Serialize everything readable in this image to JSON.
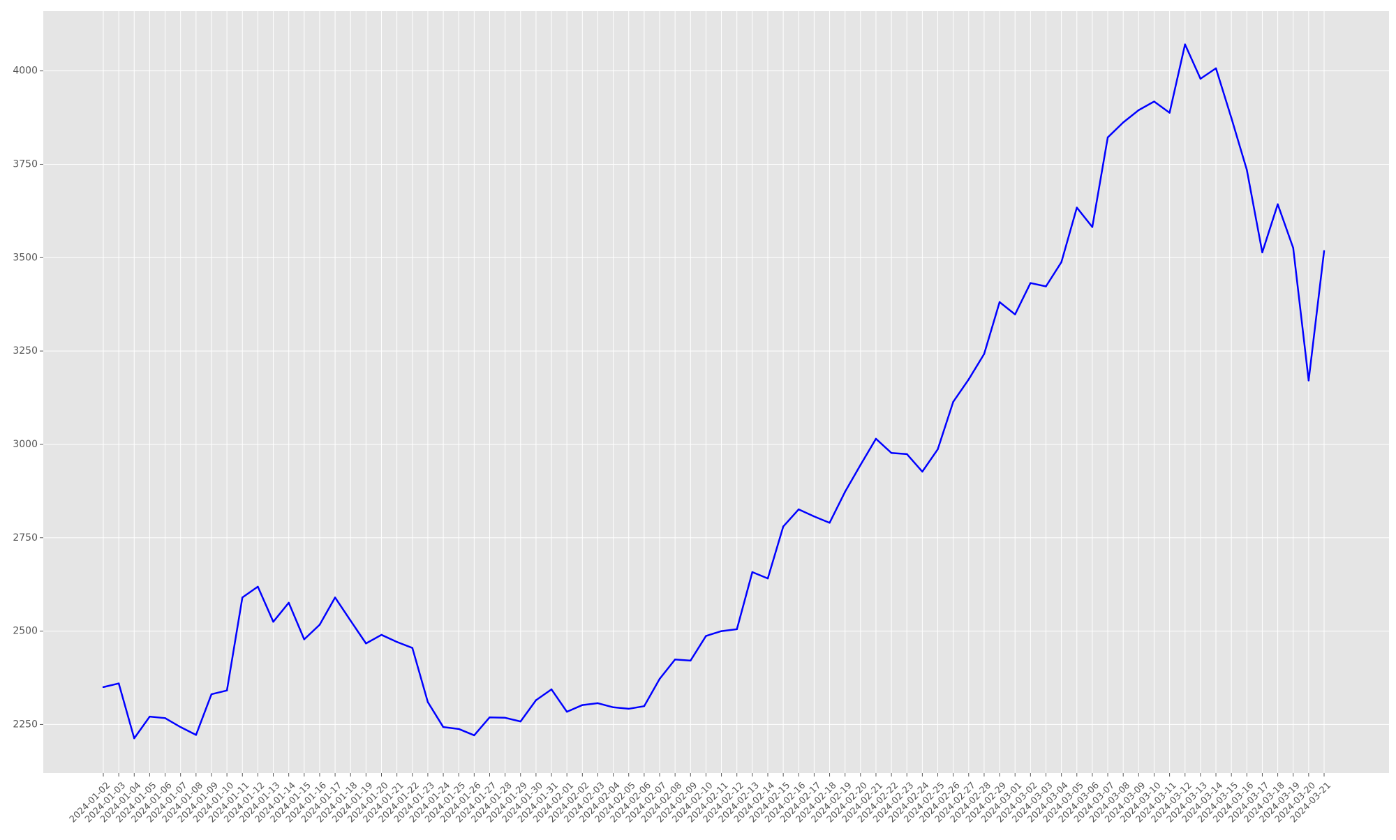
{
  "chart_data": {
    "type": "line",
    "title": "",
    "xlabel": "",
    "ylabel": "",
    "grid": true,
    "ylim": [
      2120,
      4160
    ],
    "yticks": [
      2250,
      2500,
      2750,
      3000,
      3250,
      3500,
      3750,
      4000
    ],
    "line_color": "#0000ff",
    "background_color": "#e5e5e5",
    "grid_color": "#ffffff",
    "x": [
      "2024-01-02",
      "2024-01-03",
      "2024-01-04",
      "2024-01-05",
      "2024-01-06",
      "2024-01-07",
      "2024-01-08",
      "2024-01-09",
      "2024-01-10",
      "2024-01-11",
      "2024-01-12",
      "2024-01-13",
      "2024-01-14",
      "2024-01-15",
      "2024-01-16",
      "2024-01-17",
      "2024-01-18",
      "2024-01-19",
      "2024-01-20",
      "2024-01-21",
      "2024-01-22",
      "2024-01-23",
      "2024-01-24",
      "2024-01-25",
      "2024-01-26",
      "2024-01-27",
      "2024-01-28",
      "2024-01-29",
      "2024-01-30",
      "2024-01-31",
      "2024-02-01",
      "2024-02-02",
      "2024-02-03",
      "2024-02-04",
      "2024-02-05",
      "2024-02-06",
      "2024-02-07",
      "2024-02-08",
      "2024-02-09",
      "2024-02-10",
      "2024-02-11",
      "2024-02-12",
      "2024-02-13",
      "2024-02-14",
      "2024-02-15",
      "2024-02-16",
      "2024-02-17",
      "2024-02-18",
      "2024-02-19",
      "2024-02-20",
      "2024-02-21",
      "2024-02-22",
      "2024-02-23",
      "2024-02-24",
      "2024-02-25",
      "2024-02-26",
      "2024-02-27",
      "2024-02-28",
      "2024-02-29",
      "2024-03-01",
      "2024-03-02",
      "2024-03-03",
      "2024-03-04",
      "2024-03-05",
      "2024-03-06",
      "2024-03-07",
      "2024-03-08",
      "2024-03-09",
      "2024-03-10",
      "2024-03-11",
      "2024-03-12",
      "2024-03-13",
      "2024-03-14",
      "2024-03-15",
      "2024-03-16",
      "2024-03-17",
      "2024-03-18",
      "2024-03-19",
      "2024-03-20",
      "2024-03-21"
    ],
    "series": [
      {
        "values": [
          2350,
          2360,
          2213,
          2271,
          2267,
          2243,
          2222,
          2331,
          2341,
          2590,
          2619,
          2525,
          2576,
          2478,
          2517,
          2590,
          2528,
          2467,
          2490,
          2471,
          2455,
          2310,
          2243,
          2238,
          2221,
          2269,
          2268,
          2258,
          2315,
          2344,
          2284,
          2302,
          2307,
          2296,
          2292,
          2299,
          2372,
          2424,
          2421,
          2487,
          2500,
          2505,
          2658,
          2641,
          2780,
          2826,
          2807,
          2790,
          2873,
          2945,
          3015,
          2977,
          2974,
          2927,
          2987,
          3114,
          3174,
          3242,
          3381,
          3348,
          3432,
          3423,
          3488,
          3634,
          3582,
          3822,
          3862,
          3895,
          3918,
          3888,
          4071,
          3979,
          4007,
          3874,
          3735,
          3514,
          3643,
          3526,
          3171,
          3518
        ]
      }
    ]
  }
}
